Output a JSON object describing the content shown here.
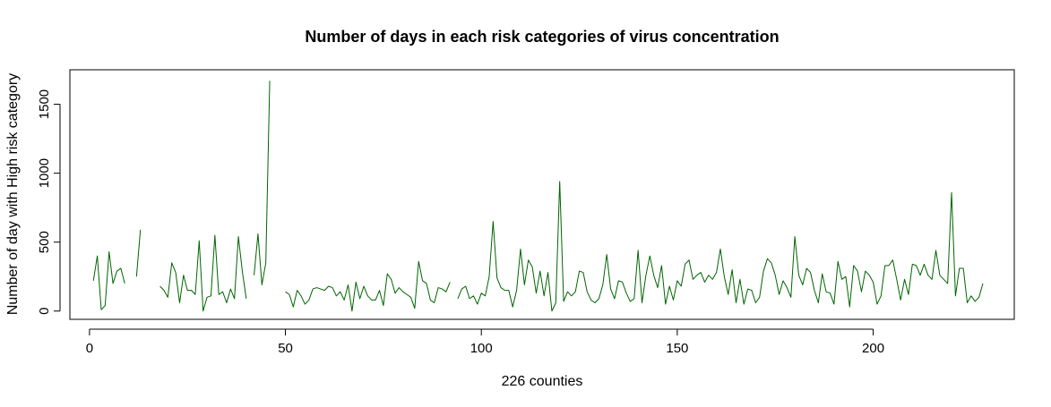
{
  "chart_data": {
    "type": "line",
    "title": "Number of days in each risk categories of virus concentration",
    "xlabel": "226 counties",
    "ylabel": "Number of day with High risk category",
    "xlim": [
      -5,
      236
    ],
    "ylim": [
      -60,
      1750
    ],
    "x_ticks": [
      0,
      50,
      100,
      150,
      200
    ],
    "y_ticks": [
      0,
      500,
      1000,
      1500
    ],
    "grid": false,
    "line_color": "#006400",
    "series": [
      {
        "values": [
          220,
          400,
          10,
          40,
          430,
          200,
          290,
          310,
          200,
          null,
          null,
          250,
          590,
          null,
          null,
          null,
          null,
          180,
          150,
          100,
          350,
          280,
          60,
          260,
          150,
          150,
          120,
          510,
          0,
          100,
          110,
          550,
          120,
          140,
          60,
          160,
          90,
          540,
          290,
          90,
          null,
          260,
          560,
          190,
          350,
          1670,
          null,
          null,
          null,
          140,
          120,
          30,
          150,
          110,
          50,
          80,
          160,
          170,
          160,
          150,
          180,
          170,
          110,
          140,
          80,
          190,
          0,
          210,
          90,
          180,
          110,
          80,
          80,
          150,
          40,
          270,
          230,
          130,
          170,
          140,
          120,
          100,
          20,
          360,
          220,
          200,
          80,
          60,
          170,
          160,
          140,
          210,
          null,
          90,
          160,
          180,
          90,
          110,
          50,
          130,
          110,
          250,
          650,
          240,
          170,
          150,
          150,
          30,
          150,
          450,
          190,
          370,
          320,
          130,
          290,
          110,
          280,
          0,
          60,
          940,
          70,
          140,
          110,
          140,
          290,
          280,
          140,
          80,
          60,
          90,
          190,
          410,
          160,
          90,
          220,
          210,
          130,
          70,
          90,
          440,
          60,
          260,
          400,
          260,
          170,
          330,
          50,
          180,
          80,
          220,
          180,
          340,
          370,
          230,
          260,
          280,
          210,
          260,
          230,
          280,
          450,
          250,
          120,
          300,
          60,
          230,
          50,
          160,
          150,
          60,
          100,
          290,
          380,
          350,
          260,
          120,
          220,
          170,
          100,
          540,
          260,
          190,
          310,
          280,
          150,
          60,
          270,
          140,
          130,
          50,
          360,
          230,
          250,
          30,
          330,
          290,
          140,
          290,
          260,
          210,
          50,
          110,
          330,
          330,
          370,
          230,
          80,
          230,
          120,
          340,
          330,
          260,
          340,
          260,
          230,
          440,
          260,
          230,
          200,
          860,
          110,
          310,
          310,
          60,
          110,
          70,
          100,
          200
        ]
      }
    ]
  }
}
